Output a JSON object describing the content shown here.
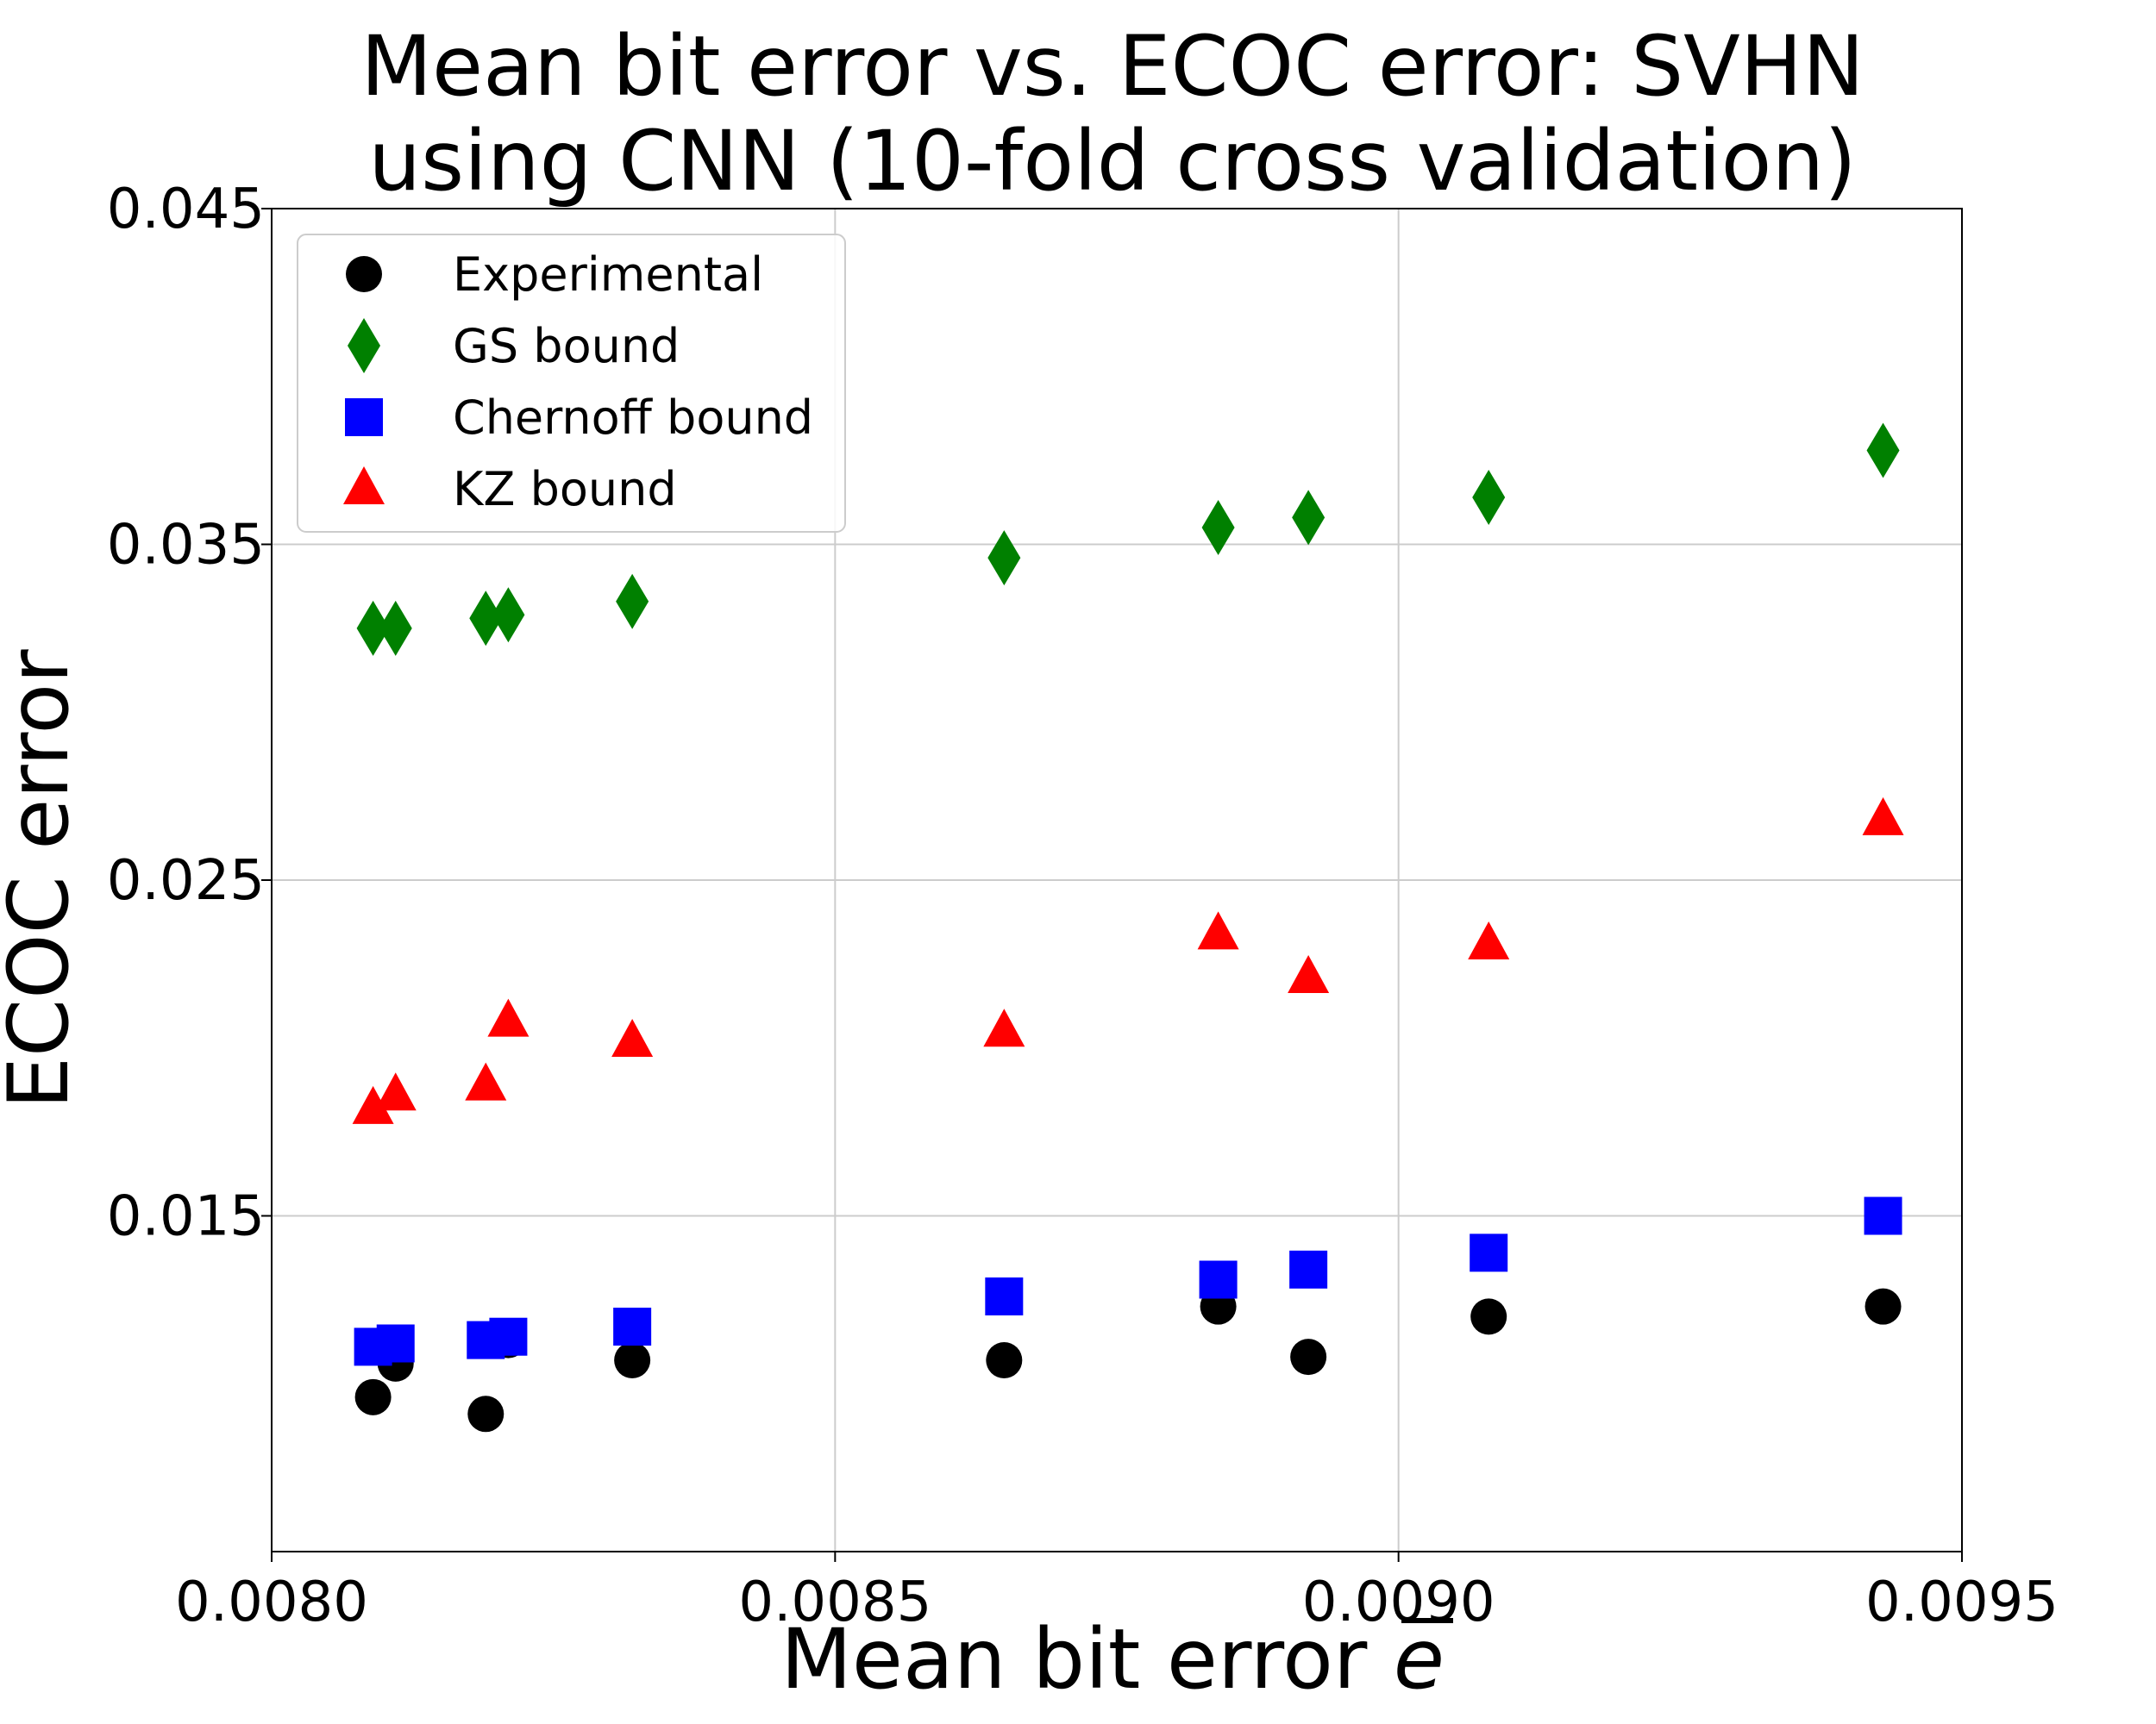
{
  "chart_data": {
    "type": "scatter",
    "title_lines": [
      "Mean bit error vs. ECOC error: SVHN",
      "using CNN (10-fold cross validation)"
    ],
    "xlabel": "Mean bit error",
    "xlabel_symbol": "e",
    "ylabel": "ECOC error",
    "xlim": [
      0.008,
      0.0095
    ],
    "ylim": [
      0.005,
      0.045
    ],
    "xticks": [
      0.008,
      0.0085,
      0.009,
      0.0095
    ],
    "xtick_labels": [
      "0.0080",
      "0.0085",
      "0.0090",
      "0.0095"
    ],
    "yticks": [
      0.015,
      0.025,
      0.035,
      0.045
    ],
    "ytick_labels": [
      "0.015",
      "0.025",
      "0.035",
      "0.045"
    ],
    "grid": true,
    "legend_position": "top-left",
    "x": [
      0.00809,
      0.00811,
      0.00819,
      0.00821,
      0.00832,
      0.00865,
      0.00884,
      0.00892,
      0.00908,
      0.00943
    ],
    "series": [
      {
        "name": "Experimental",
        "marker": "circle",
        "color": "#000000",
        "values": [
          0.0096,
          0.0106,
          0.0091,
          0.0113,
          0.0107,
          0.0107,
          0.0123,
          0.0108,
          0.012,
          0.0123
        ]
      },
      {
        "name": "GS bound",
        "marker": "diamond",
        "color": "#008000",
        "values": [
          0.0325,
          0.0325,
          0.0328,
          0.0329,
          0.0333,
          0.0346,
          0.0355,
          0.0358,
          0.0364,
          0.0378
        ]
      },
      {
        "name": "Chernoff bound",
        "marker": "square",
        "color": "#0000ff",
        "values": [
          0.0111,
          0.0112,
          0.0113,
          0.0114,
          0.0117,
          0.0126,
          0.0131,
          0.0134,
          0.0139,
          0.015
        ]
      },
      {
        "name": "KZ bound",
        "marker": "triangle",
        "color": "#ff0000",
        "values": [
          0.0182,
          0.0186,
          0.0189,
          0.0208,
          0.0202,
          0.0205,
          0.0234,
          0.0221,
          0.0231,
          0.0268
        ]
      }
    ]
  }
}
